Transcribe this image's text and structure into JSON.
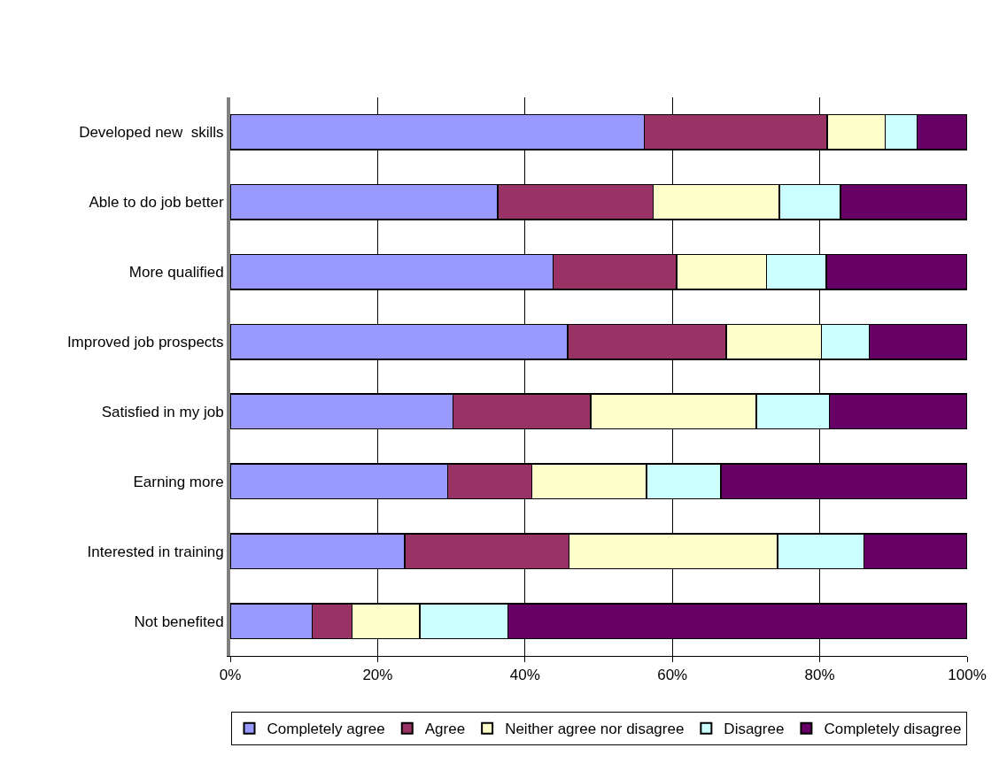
{
  "chart_data": {
    "type": "bar",
    "orientation": "horizontal",
    "stacked": true,
    "categories": [
      "Developed new  skills",
      "Able to do job better",
      "More qualified",
      "Improved job prospects",
      "Satisfied in my job",
      "Earning more",
      "Interested in training",
      "Not benefited"
    ],
    "series": [
      {
        "name": "Completely agree",
        "color": "#9999ff",
        "values": [
          56.2,
          36.3,
          43.8,
          45.8,
          30.2,
          29.5,
          23.7,
          11.1
        ]
      },
      {
        "name": "Agree",
        "color": "#993366",
        "values": [
          24.8,
          21.1,
          16.8,
          21.5,
          18.7,
          11.4,
          22.3,
          5.4
        ]
      },
      {
        "name": "Neither agree nor disagree",
        "color": "#ffffcc",
        "values": [
          7.9,
          17.1,
          12.2,
          12.9,
          22.5,
          15.6,
          28.3,
          9.2
        ]
      },
      {
        "name": "Disagree",
        "color": "#ccffff",
        "values": [
          4.3,
          8.3,
          8.1,
          6.5,
          9.9,
          10.1,
          11.7,
          12.0
        ]
      },
      {
        "name": "Completely disagree",
        "color": "#660066",
        "values": [
          6.8,
          17.2,
          19.1,
          13.3,
          18.7,
          33.4,
          14.0,
          62.3
        ]
      }
    ],
    "xlim": [
      0,
      100
    ],
    "xticks": [
      {
        "value": 0,
        "label": "0%"
      },
      {
        "value": 20,
        "label": "20%"
      },
      {
        "value": 40,
        "label": "40%"
      },
      {
        "value": 60,
        "label": "60%"
      },
      {
        "value": 80,
        "label": "80%"
      },
      {
        "value": 100,
        "label": "100%"
      }
    ],
    "grid": "x",
    "legend": "bottom"
  }
}
